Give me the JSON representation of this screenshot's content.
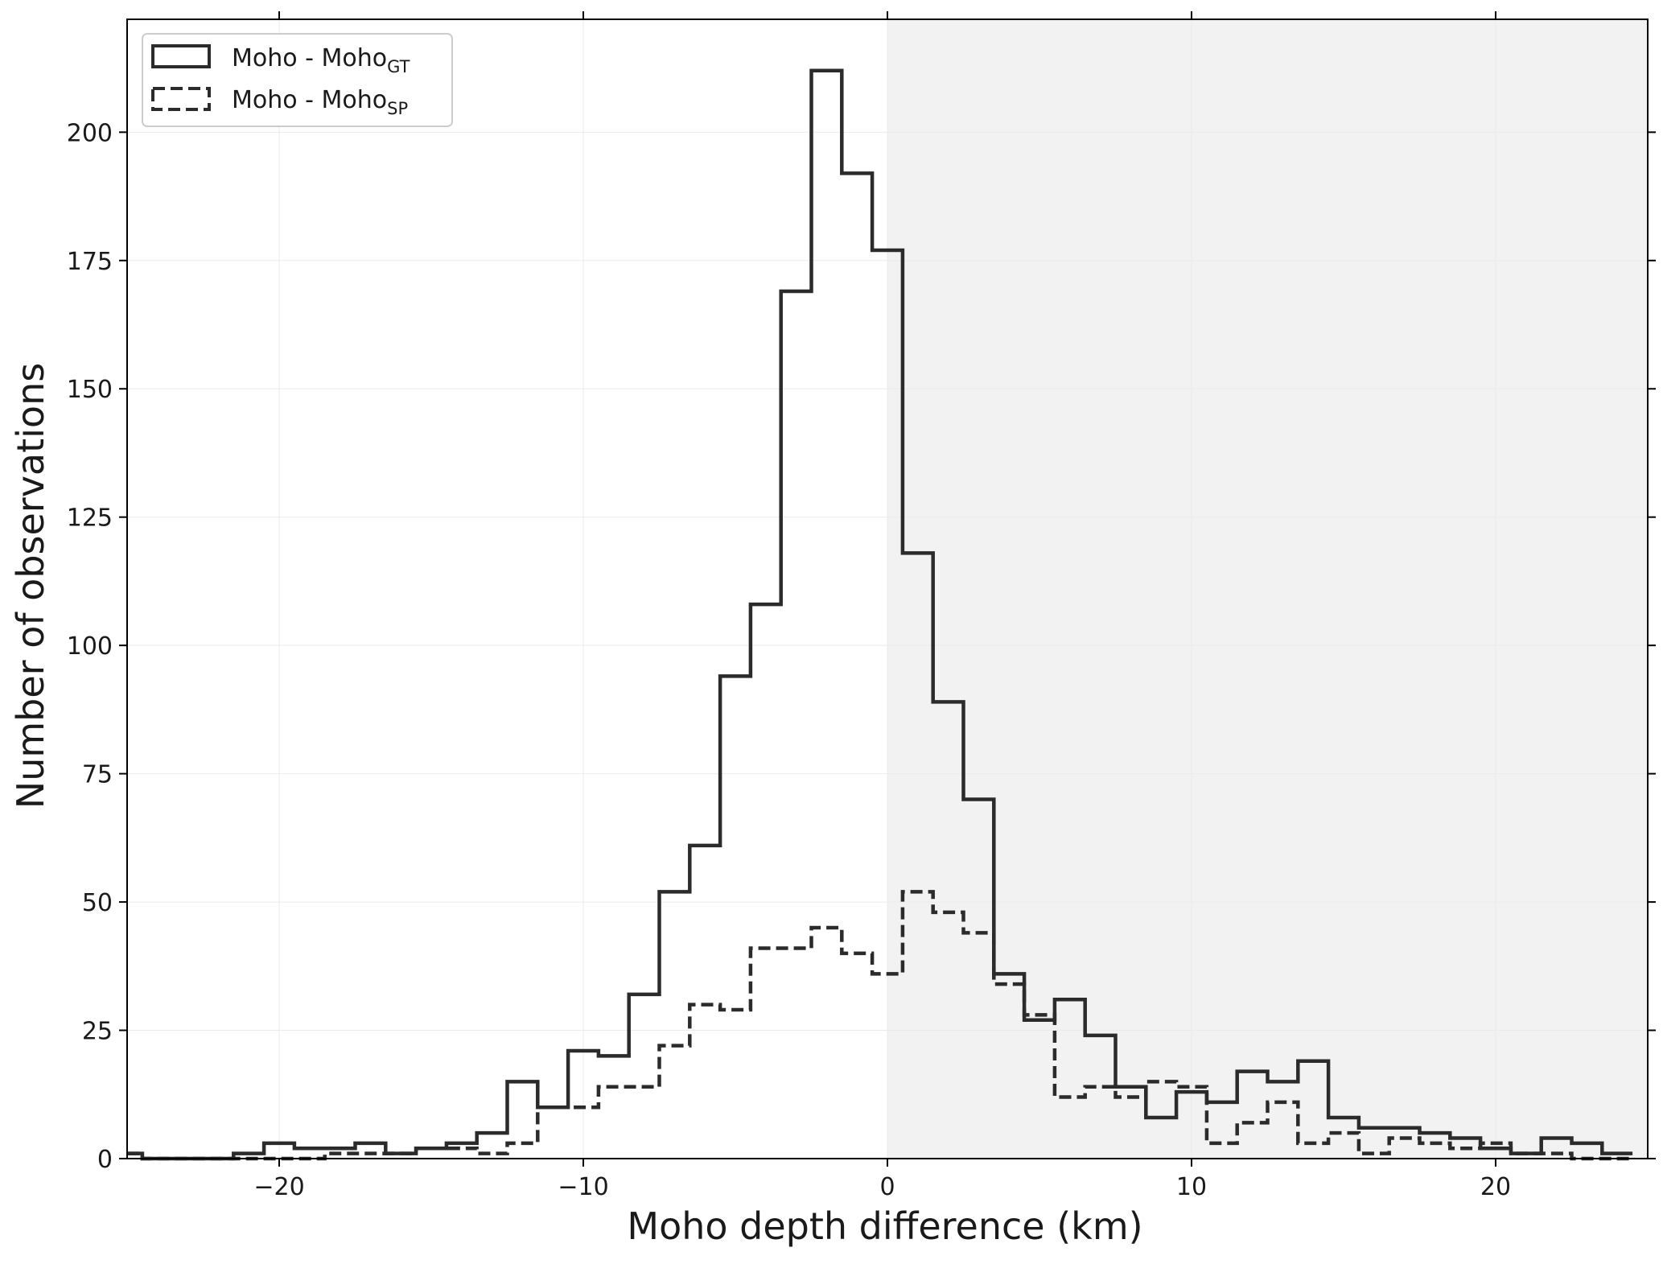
{
  "chart_data": {
    "type": "histogram",
    "xlabel": "Moho depth difference (km)",
    "ylabel": "Number of observations",
    "xlim": [
      -25,
      25
    ],
    "ylim": [
      0,
      222
    ],
    "bin_width": 1,
    "bin_edges_start": -25.5,
    "x_ticks": [
      -20,
      -10,
      0,
      10,
      20
    ],
    "x_tick_labels": [
      "−20",
      "−10",
      "0",
      "10",
      "20"
    ],
    "y_ticks": [
      0,
      25,
      50,
      75,
      100,
      125,
      150,
      175,
      200
    ],
    "y_tick_labels": [
      "0",
      "25",
      "50",
      "75",
      "100",
      "125",
      "150",
      "175",
      "200"
    ],
    "shaded_region": {
      "x_from": 0,
      "x_to": 25,
      "color": "#f2f2f2"
    },
    "grid": true,
    "legend_position": "top-left",
    "series": [
      {
        "name": "Moho - Moho",
        "subscript": "GT",
        "style": "solid",
        "color": "#2b2b2b",
        "counts": [
          1,
          0,
          0,
          0,
          1,
          3,
          2,
          2,
          3,
          1,
          2,
          3,
          5,
          15,
          10,
          21,
          20,
          32,
          52,
          61,
          94,
          108,
          169,
          212,
          192,
          177,
          118,
          89,
          70,
          36,
          27,
          31,
          24,
          14,
          8,
          13,
          11,
          17,
          15,
          19,
          8,
          6,
          6,
          5,
          4,
          2,
          1,
          4,
          3,
          1
        ]
      },
      {
        "name": "Moho - Moho",
        "subscript": "SP",
        "style": "dashed",
        "color": "#2b2b2b",
        "counts": [
          1,
          0,
          0,
          0,
          0,
          0,
          0,
          1,
          1,
          1,
          2,
          2,
          1,
          3,
          10,
          10,
          14,
          14,
          22,
          30,
          29,
          41,
          41,
          45,
          40,
          36,
          52,
          48,
          44,
          34,
          28,
          12,
          14,
          12,
          15,
          14,
          3,
          7,
          11,
          3,
          5,
          1,
          4,
          3,
          2,
          3,
          1,
          1,
          0,
          0
        ]
      }
    ]
  }
}
